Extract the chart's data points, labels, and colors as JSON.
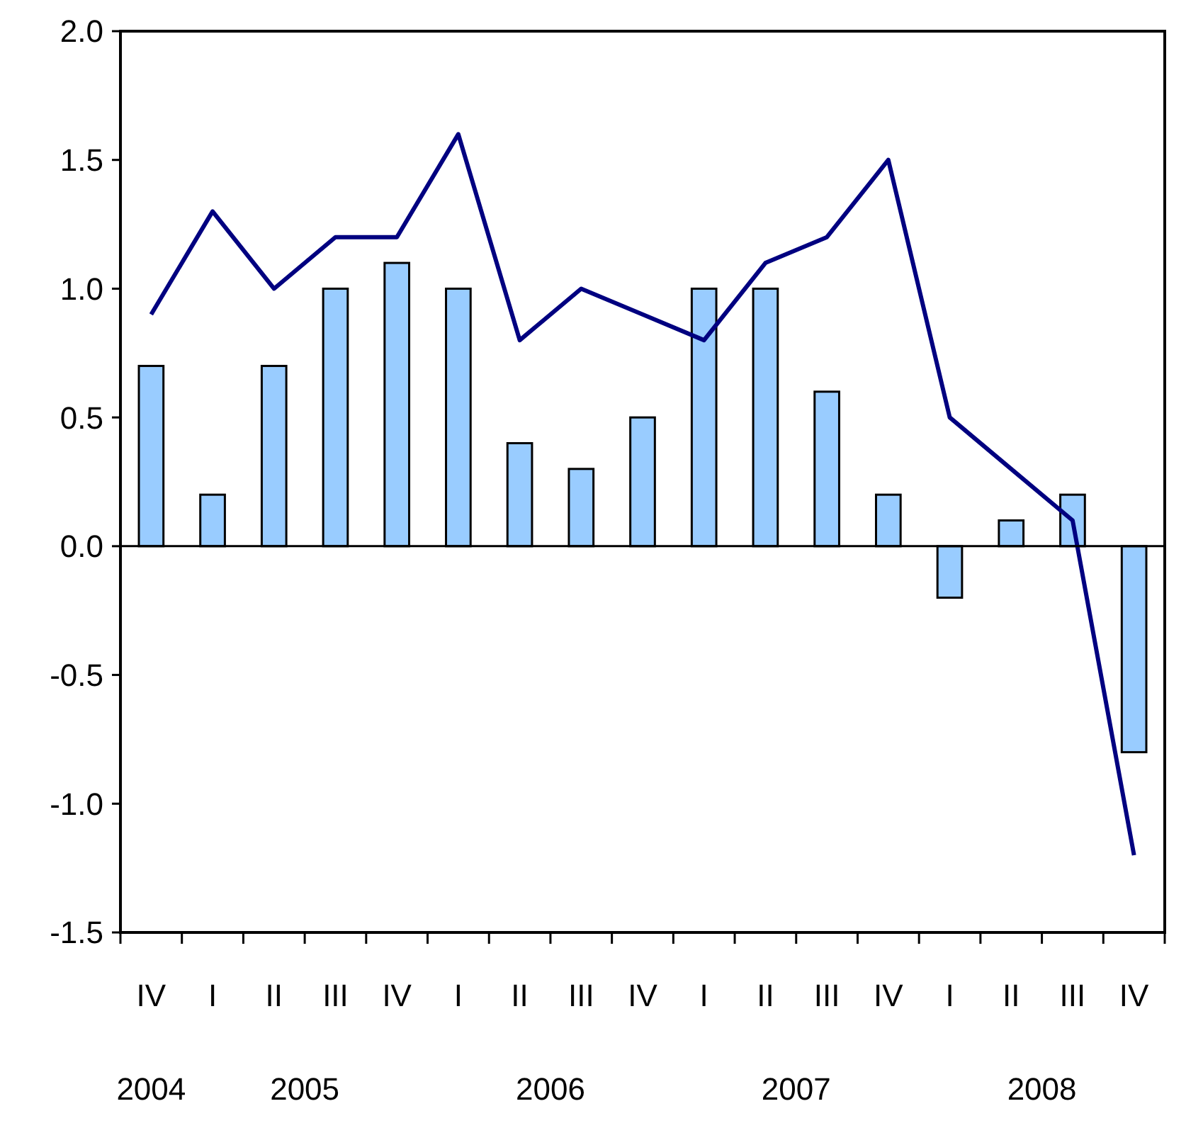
{
  "chart_data": {
    "type": "bar",
    "categories": [
      "IV",
      "I",
      "II",
      "III",
      "IV",
      "I",
      "II",
      "III",
      "IV",
      "I",
      "II",
      "III",
      "IV",
      "I",
      "II",
      "III",
      "IV"
    ],
    "series": [
      {
        "color": "#99ccff",
        "values": [
          0.7,
          0.2,
          0.7,
          1.0,
          1.1,
          1.0,
          0.4,
          0.3,
          0.5,
          1.0,
          1.0,
          0.6,
          0.2,
          -0.2,
          0.1,
          0.2,
          -0.8
        ]
      },
      {
        "type": "line",
        "color": "#000080",
        "values": [
          0.9,
          1.3,
          1.0,
          1.2,
          1.2,
          1.6,
          0.8,
          1.0,
          0.9,
          0.8,
          1.1,
          1.2,
          1.5,
          0.5,
          0.3,
          0.1,
          -1.2
        ]
      }
    ],
    "ylim": [
      -1.5,
      2.0
    ],
    "yticks": [
      {
        "value": -1.5,
        "label": "-1.5"
      },
      {
        "value": -1.0,
        "label": "-1.0"
      },
      {
        "value": -0.5,
        "label": "-0.5"
      },
      {
        "value": 0,
        "label": "0.0"
      },
      {
        "value": 0.5,
        "label": "0.5"
      },
      {
        "value": 1.0,
        "label": "1.0"
      },
      {
        "value": 1.5,
        "label": "1.5"
      },
      {
        "value": 2.0,
        "label": "2.0"
      }
    ],
    "annotations": [
      "2004",
      "2005",
      "2006",
      "2007",
      "2008"
    ],
    "marker": "none",
    "line_style": "solid"
  }
}
